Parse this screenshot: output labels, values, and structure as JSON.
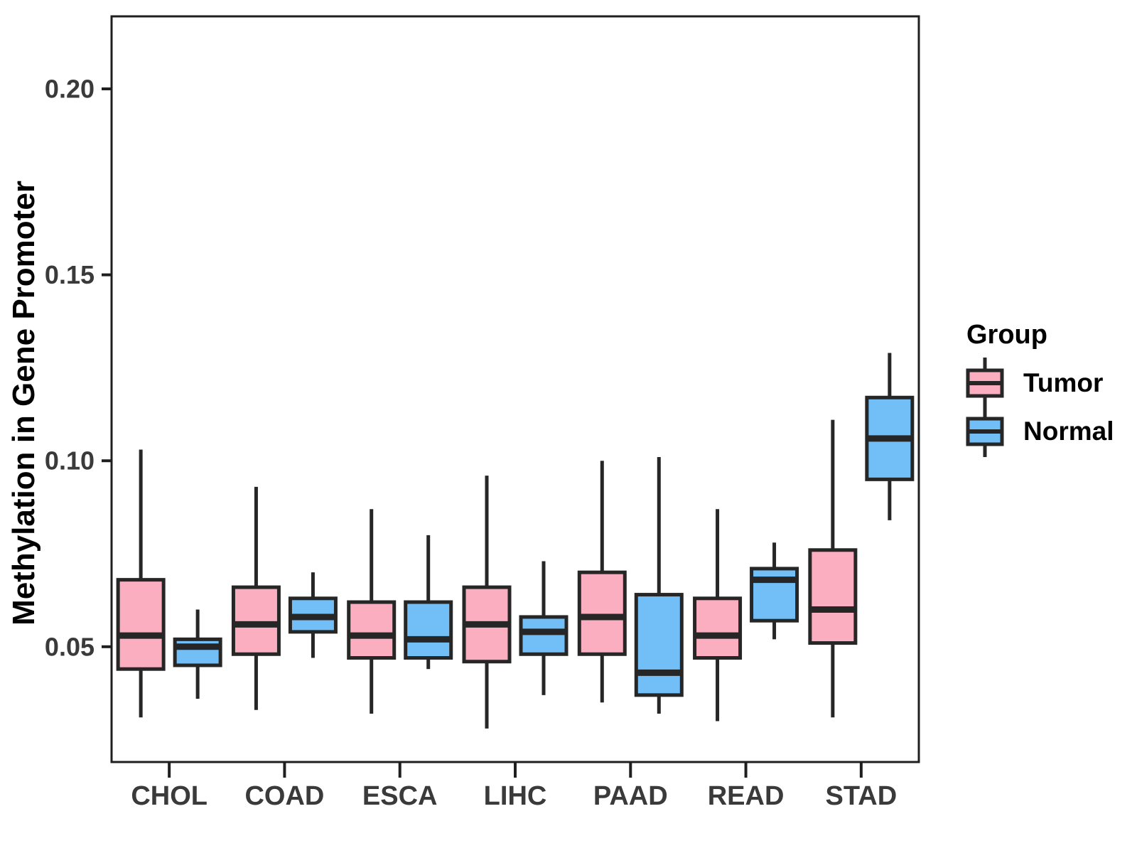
{
  "chart_data": {
    "type": "boxplot",
    "title": "",
    "xlabel": "",
    "ylabel": "Methylation in Gene Promoter",
    "categories": [
      "CHOL",
      "COAD",
      "ESCA",
      "LIHC",
      "PAAD",
      "READ",
      "STAD"
    ],
    "y_axis": {
      "ticks": [
        0.05,
        0.1,
        0.15,
        0.2
      ],
      "tick_labels": [
        "0.05",
        "0.10",
        "0.15",
        "0.20"
      ],
      "range": [
        0.019,
        0.2195
      ]
    },
    "grid": false,
    "legend": {
      "title": "Group",
      "position": "right",
      "entries": [
        "Tumor",
        "Normal"
      ]
    },
    "colors": {
      "line": "#262626",
      "frame": "#1f1f1f"
    },
    "series": [
      {
        "name": "Tumor",
        "color": "#FAAEC0",
        "boxes": [
          {
            "category": "CHOL",
            "low": 0.031,
            "q1": 0.044,
            "median": 0.053,
            "q3": 0.068,
            "high": 0.103
          },
          {
            "category": "COAD",
            "low": 0.033,
            "q1": 0.048,
            "median": 0.056,
            "q3": 0.066,
            "high": 0.093
          },
          {
            "category": "ESCA",
            "low": 0.032,
            "q1": 0.047,
            "median": 0.053,
            "q3": 0.062,
            "high": 0.087
          },
          {
            "category": "LIHC",
            "low": 0.028,
            "q1": 0.046,
            "median": 0.056,
            "q3": 0.066,
            "high": 0.096
          },
          {
            "category": "PAAD",
            "low": 0.035,
            "q1": 0.048,
            "median": 0.058,
            "q3": 0.07,
            "high": 0.1
          },
          {
            "category": "READ",
            "low": 0.03,
            "q1": 0.047,
            "median": 0.053,
            "q3": 0.063,
            "high": 0.087
          },
          {
            "category": "STAD",
            "low": 0.031,
            "q1": 0.051,
            "median": 0.06,
            "q3": 0.076,
            "high": 0.111
          }
        ]
      },
      {
        "name": "Normal",
        "color": "#72BFF7",
        "boxes": [
          {
            "category": "CHOL",
            "low": 0.036,
            "q1": 0.045,
            "median": 0.05,
            "q3": 0.052,
            "high": 0.06
          },
          {
            "category": "COAD",
            "low": 0.047,
            "q1": 0.054,
            "median": 0.058,
            "q3": 0.063,
            "high": 0.07
          },
          {
            "category": "ESCA",
            "low": 0.044,
            "q1": 0.047,
            "median": 0.052,
            "q3": 0.062,
            "high": 0.08
          },
          {
            "category": "LIHC",
            "low": 0.037,
            "q1": 0.048,
            "median": 0.054,
            "q3": 0.058,
            "high": 0.073
          },
          {
            "category": "PAAD",
            "low": 0.032,
            "q1": 0.037,
            "median": 0.043,
            "q3": 0.064,
            "high": 0.101
          },
          {
            "category": "READ",
            "low": 0.052,
            "q1": 0.057,
            "median": 0.068,
            "q3": 0.071,
            "high": 0.078
          },
          {
            "category": "STAD",
            "low": 0.084,
            "q1": 0.095,
            "median": 0.106,
            "q3": 0.117,
            "high": 0.129
          }
        ]
      }
    ]
  }
}
